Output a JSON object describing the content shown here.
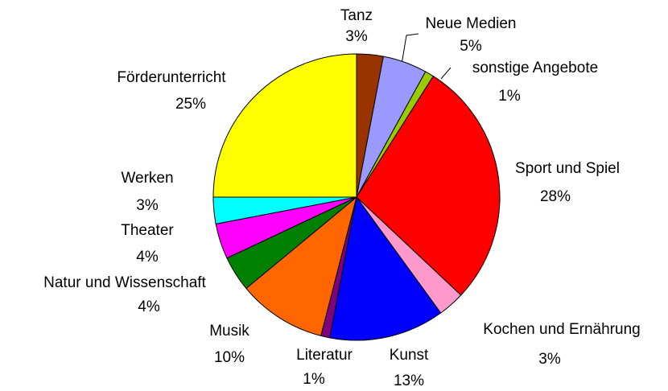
{
  "chart_data": {
    "type": "pie",
    "categories": [
      "Tanz",
      "Neue Medien",
      "sonstige Angebote",
      "Sport und Spiel",
      "Kochen und Ernährung",
      "Kunst",
      "Literatur",
      "Musik",
      "Natur und Wissenschaft",
      "Theater",
      "Werken",
      "Förderunterricht"
    ],
    "values": [
      3,
      5,
      1,
      28,
      3,
      13,
      1,
      10,
      4,
      4,
      3,
      25
    ],
    "value_labels": [
      "3%",
      "5%",
      "1%",
      "28%",
      "3%",
      "13%",
      "1%",
      "10%",
      "4%",
      "4%",
      "3%",
      "25%"
    ],
    "colors": [
      "#993300",
      "#9999ff",
      "#99cc00",
      "#ff0000",
      "#ff99cc",
      "#0000ff",
      "#800080",
      "#ff6600",
      "#008000",
      "#ff00ff",
      "#00ffff",
      "#ffff00"
    ]
  }
}
